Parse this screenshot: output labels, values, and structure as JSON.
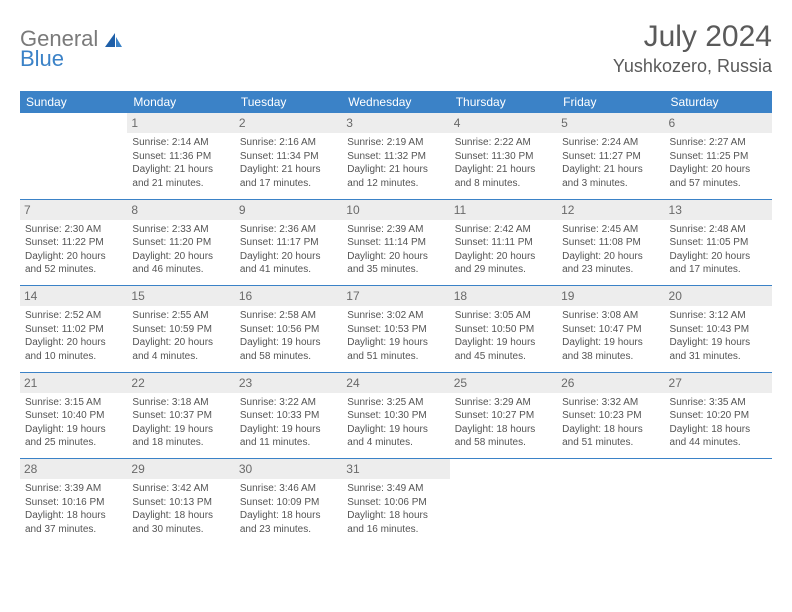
{
  "logo": {
    "textA": "General",
    "textB": "Blue"
  },
  "title": "July 2024",
  "location": "Yushkozero, Russia",
  "colors": {
    "header_bg": "#3b82c7",
    "header_fg": "#ffffff",
    "daynum_bg": "#ededed",
    "daynum_fg": "#6a6a6a",
    "cell_fg": "#545454",
    "title_fg": "#5a5a5a",
    "logo_gray": "#7a7a7a",
    "logo_blue": "#3b82c7"
  },
  "weekdays": [
    "Sunday",
    "Monday",
    "Tuesday",
    "Wednesday",
    "Thursday",
    "Friday",
    "Saturday"
  ],
  "weeks": [
    [
      null,
      {
        "num": "1",
        "sunrise": "Sunrise: 2:14 AM",
        "sunset": "Sunset: 11:36 PM",
        "day1": "Daylight: 21 hours",
        "day2": "and 21 minutes."
      },
      {
        "num": "2",
        "sunrise": "Sunrise: 2:16 AM",
        "sunset": "Sunset: 11:34 PM",
        "day1": "Daylight: 21 hours",
        "day2": "and 17 minutes."
      },
      {
        "num": "3",
        "sunrise": "Sunrise: 2:19 AM",
        "sunset": "Sunset: 11:32 PM",
        "day1": "Daylight: 21 hours",
        "day2": "and 12 minutes."
      },
      {
        "num": "4",
        "sunrise": "Sunrise: 2:22 AM",
        "sunset": "Sunset: 11:30 PM",
        "day1": "Daylight: 21 hours",
        "day2": "and 8 minutes."
      },
      {
        "num": "5",
        "sunrise": "Sunrise: 2:24 AM",
        "sunset": "Sunset: 11:27 PM",
        "day1": "Daylight: 21 hours",
        "day2": "and 3 minutes."
      },
      {
        "num": "6",
        "sunrise": "Sunrise: 2:27 AM",
        "sunset": "Sunset: 11:25 PM",
        "day1": "Daylight: 20 hours",
        "day2": "and 57 minutes."
      }
    ],
    [
      {
        "num": "7",
        "sunrise": "Sunrise: 2:30 AM",
        "sunset": "Sunset: 11:22 PM",
        "day1": "Daylight: 20 hours",
        "day2": "and 52 minutes."
      },
      {
        "num": "8",
        "sunrise": "Sunrise: 2:33 AM",
        "sunset": "Sunset: 11:20 PM",
        "day1": "Daylight: 20 hours",
        "day2": "and 46 minutes."
      },
      {
        "num": "9",
        "sunrise": "Sunrise: 2:36 AM",
        "sunset": "Sunset: 11:17 PM",
        "day1": "Daylight: 20 hours",
        "day2": "and 41 minutes."
      },
      {
        "num": "10",
        "sunrise": "Sunrise: 2:39 AM",
        "sunset": "Sunset: 11:14 PM",
        "day1": "Daylight: 20 hours",
        "day2": "and 35 minutes."
      },
      {
        "num": "11",
        "sunrise": "Sunrise: 2:42 AM",
        "sunset": "Sunset: 11:11 PM",
        "day1": "Daylight: 20 hours",
        "day2": "and 29 minutes."
      },
      {
        "num": "12",
        "sunrise": "Sunrise: 2:45 AM",
        "sunset": "Sunset: 11:08 PM",
        "day1": "Daylight: 20 hours",
        "day2": "and 23 minutes."
      },
      {
        "num": "13",
        "sunrise": "Sunrise: 2:48 AM",
        "sunset": "Sunset: 11:05 PM",
        "day1": "Daylight: 20 hours",
        "day2": "and 17 minutes."
      }
    ],
    [
      {
        "num": "14",
        "sunrise": "Sunrise: 2:52 AM",
        "sunset": "Sunset: 11:02 PM",
        "day1": "Daylight: 20 hours",
        "day2": "and 10 minutes."
      },
      {
        "num": "15",
        "sunrise": "Sunrise: 2:55 AM",
        "sunset": "Sunset: 10:59 PM",
        "day1": "Daylight: 20 hours",
        "day2": "and 4 minutes."
      },
      {
        "num": "16",
        "sunrise": "Sunrise: 2:58 AM",
        "sunset": "Sunset: 10:56 PM",
        "day1": "Daylight: 19 hours",
        "day2": "and 58 minutes."
      },
      {
        "num": "17",
        "sunrise": "Sunrise: 3:02 AM",
        "sunset": "Sunset: 10:53 PM",
        "day1": "Daylight: 19 hours",
        "day2": "and 51 minutes."
      },
      {
        "num": "18",
        "sunrise": "Sunrise: 3:05 AM",
        "sunset": "Sunset: 10:50 PM",
        "day1": "Daylight: 19 hours",
        "day2": "and 45 minutes."
      },
      {
        "num": "19",
        "sunrise": "Sunrise: 3:08 AM",
        "sunset": "Sunset: 10:47 PM",
        "day1": "Daylight: 19 hours",
        "day2": "and 38 minutes."
      },
      {
        "num": "20",
        "sunrise": "Sunrise: 3:12 AM",
        "sunset": "Sunset: 10:43 PM",
        "day1": "Daylight: 19 hours",
        "day2": "and 31 minutes."
      }
    ],
    [
      {
        "num": "21",
        "sunrise": "Sunrise: 3:15 AM",
        "sunset": "Sunset: 10:40 PM",
        "day1": "Daylight: 19 hours",
        "day2": "and 25 minutes."
      },
      {
        "num": "22",
        "sunrise": "Sunrise: 3:18 AM",
        "sunset": "Sunset: 10:37 PM",
        "day1": "Daylight: 19 hours",
        "day2": "and 18 minutes."
      },
      {
        "num": "23",
        "sunrise": "Sunrise: 3:22 AM",
        "sunset": "Sunset: 10:33 PM",
        "day1": "Daylight: 19 hours",
        "day2": "and 11 minutes."
      },
      {
        "num": "24",
        "sunrise": "Sunrise: 3:25 AM",
        "sunset": "Sunset: 10:30 PM",
        "day1": "Daylight: 19 hours",
        "day2": "and 4 minutes."
      },
      {
        "num": "25",
        "sunrise": "Sunrise: 3:29 AM",
        "sunset": "Sunset: 10:27 PM",
        "day1": "Daylight: 18 hours",
        "day2": "and 58 minutes."
      },
      {
        "num": "26",
        "sunrise": "Sunrise: 3:32 AM",
        "sunset": "Sunset: 10:23 PM",
        "day1": "Daylight: 18 hours",
        "day2": "and 51 minutes."
      },
      {
        "num": "27",
        "sunrise": "Sunrise: 3:35 AM",
        "sunset": "Sunset: 10:20 PM",
        "day1": "Daylight: 18 hours",
        "day2": "and 44 minutes."
      }
    ],
    [
      {
        "num": "28",
        "sunrise": "Sunrise: 3:39 AM",
        "sunset": "Sunset: 10:16 PM",
        "day1": "Daylight: 18 hours",
        "day2": "and 37 minutes."
      },
      {
        "num": "29",
        "sunrise": "Sunrise: 3:42 AM",
        "sunset": "Sunset: 10:13 PM",
        "day1": "Daylight: 18 hours",
        "day2": "and 30 minutes."
      },
      {
        "num": "30",
        "sunrise": "Sunrise: 3:46 AM",
        "sunset": "Sunset: 10:09 PM",
        "day1": "Daylight: 18 hours",
        "day2": "and 23 minutes."
      },
      {
        "num": "31",
        "sunrise": "Sunrise: 3:49 AM",
        "sunset": "Sunset: 10:06 PM",
        "day1": "Daylight: 18 hours",
        "day2": "and 16 minutes."
      },
      null,
      null,
      null
    ]
  ]
}
